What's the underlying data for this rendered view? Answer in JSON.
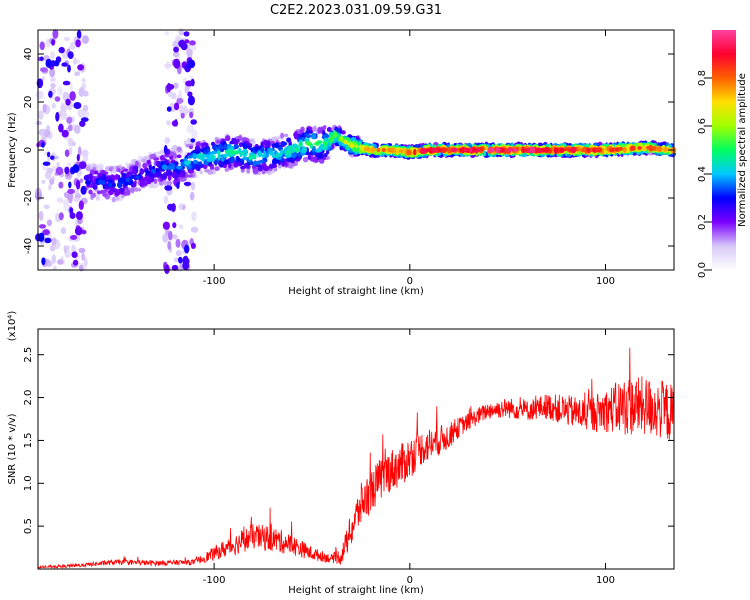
{
  "title": "C2E2.2023.031.09.59.G31",
  "chart_data": [
    {
      "type": "heatmap",
      "xlabel": "Height of straight line (km)",
      "ylabel": "Frequency (Hz)",
      "xlim": [
        -190,
        135
      ],
      "ylim": [
        -50,
        50
      ],
      "xticks": [
        -100,
        0,
        100
      ],
      "xtick_labels": [
        "-100",
        "0",
        "100"
      ],
      "yticks": [
        -40,
        -20,
        0,
        20,
        40
      ],
      "ytick_labels": [
        "-40",
        "-20",
        "0",
        "20",
        "40"
      ],
      "colorbar": {
        "label": "Normalized spectral amplitude",
        "range": [
          0,
          1
        ],
        "ticks": [
          0.0,
          0.2,
          0.4,
          0.6,
          0.8
        ],
        "tick_labels": [
          "0.0",
          "0.2",
          "0.4",
          "0.6",
          "0.8"
        ],
        "colormap": "rainbow",
        "colors": [
          "#ffffff",
          "#d8c8f8",
          "#7a00ff",
          "#0000ff",
          "#00c8ff",
          "#00ff60",
          "#a0ff00",
          "#ffe000",
          "#ff6000",
          "#ff0030",
          "#ff40a0"
        ]
      },
      "ridge": {
        "x": [
          -165,
          -150,
          -140,
          -130,
          -120,
          -110,
          -100,
          -90,
          -80,
          -70,
          -60,
          -52,
          -45,
          -38,
          -30,
          -20,
          -10,
          0,
          10,
          20,
          40,
          60,
          80,
          100,
          120,
          135
        ],
        "freq": [
          -13,
          -14,
          -11,
          -8,
          -7,
          -4,
          -2,
          -1,
          -3,
          -2,
          0,
          3,
          2,
          6,
          2,
          0,
          0,
          -1,
          0,
          0,
          0,
          0,
          0,
          0,
          1,
          0
        ],
        "amplitude": [
          0.25,
          0.3,
          0.3,
          0.3,
          0.35,
          0.4,
          0.45,
          0.45,
          0.45,
          0.4,
          0.45,
          0.5,
          0.5,
          0.55,
          0.65,
          0.8,
          0.75,
          0.85,
          0.9,
          0.9,
          0.95,
          0.95,
          0.9,
          0.9,
          0.8,
          0.75
        ]
      },
      "noise_bands": [
        {
          "x_range": [
            -190,
            -165
          ],
          "freq_range": [
            -50,
            50
          ]
        },
        {
          "x_range": [
            -125,
            -110
          ],
          "freq_range": [
            -50,
            50
          ]
        }
      ]
    },
    {
      "type": "line",
      "xlabel": "Height of straight line (km)",
      "ylabel": "SNR (10 * v/v)",
      "y_multiplier": "(x10⁴)",
      "xlim": [
        -190,
        135
      ],
      "ylim": [
        0,
        2.8
      ],
      "xticks": [
        -100,
        0,
        100
      ],
      "xtick_labels": [
        "-100",
        "0",
        "100"
      ],
      "yticks": [
        0.5,
        1.0,
        1.5,
        2.0,
        2.5
      ],
      "ytick_labels": [
        "0.5",
        "1.0",
        "1.5",
        "2.0",
        "2.5"
      ],
      "color": "#ff0000",
      "x": [
        -190,
        -170,
        -150,
        -130,
        -110,
        -100,
        -90,
        -80,
        -70,
        -60,
        -50,
        -40,
        -35,
        -30,
        -25,
        -20,
        -15,
        -10,
        -5,
        0,
        5,
        10,
        15,
        20,
        25,
        30,
        40,
        50,
        60,
        70,
        80,
        90,
        100,
        110,
        120,
        130,
        135
      ],
      "y": [
        0.02,
        0.04,
        0.08,
        0.07,
        0.08,
        0.18,
        0.28,
        0.38,
        0.35,
        0.28,
        0.18,
        0.12,
        0.15,
        0.45,
        0.75,
        0.9,
        1.05,
        1.15,
        1.2,
        1.3,
        1.4,
        1.45,
        1.5,
        1.55,
        1.65,
        1.72,
        1.85,
        1.88,
        1.85,
        1.9,
        1.85,
        1.8,
        1.85,
        1.9,
        1.9,
        1.85,
        1.8
      ],
      "noise_amplitude": [
        0.01,
        0.02,
        0.03,
        0.03,
        0.03,
        0.08,
        0.12,
        0.15,
        0.15,
        0.12,
        0.08,
        0.05,
        0.1,
        0.2,
        0.25,
        0.25,
        0.25,
        0.25,
        0.25,
        0.25,
        0.2,
        0.2,
        0.18,
        0.15,
        0.12,
        0.1,
        0.1,
        0.12,
        0.12,
        0.15,
        0.18,
        0.2,
        0.25,
        0.35,
        0.35,
        0.35,
        0.35
      ]
    }
  ]
}
